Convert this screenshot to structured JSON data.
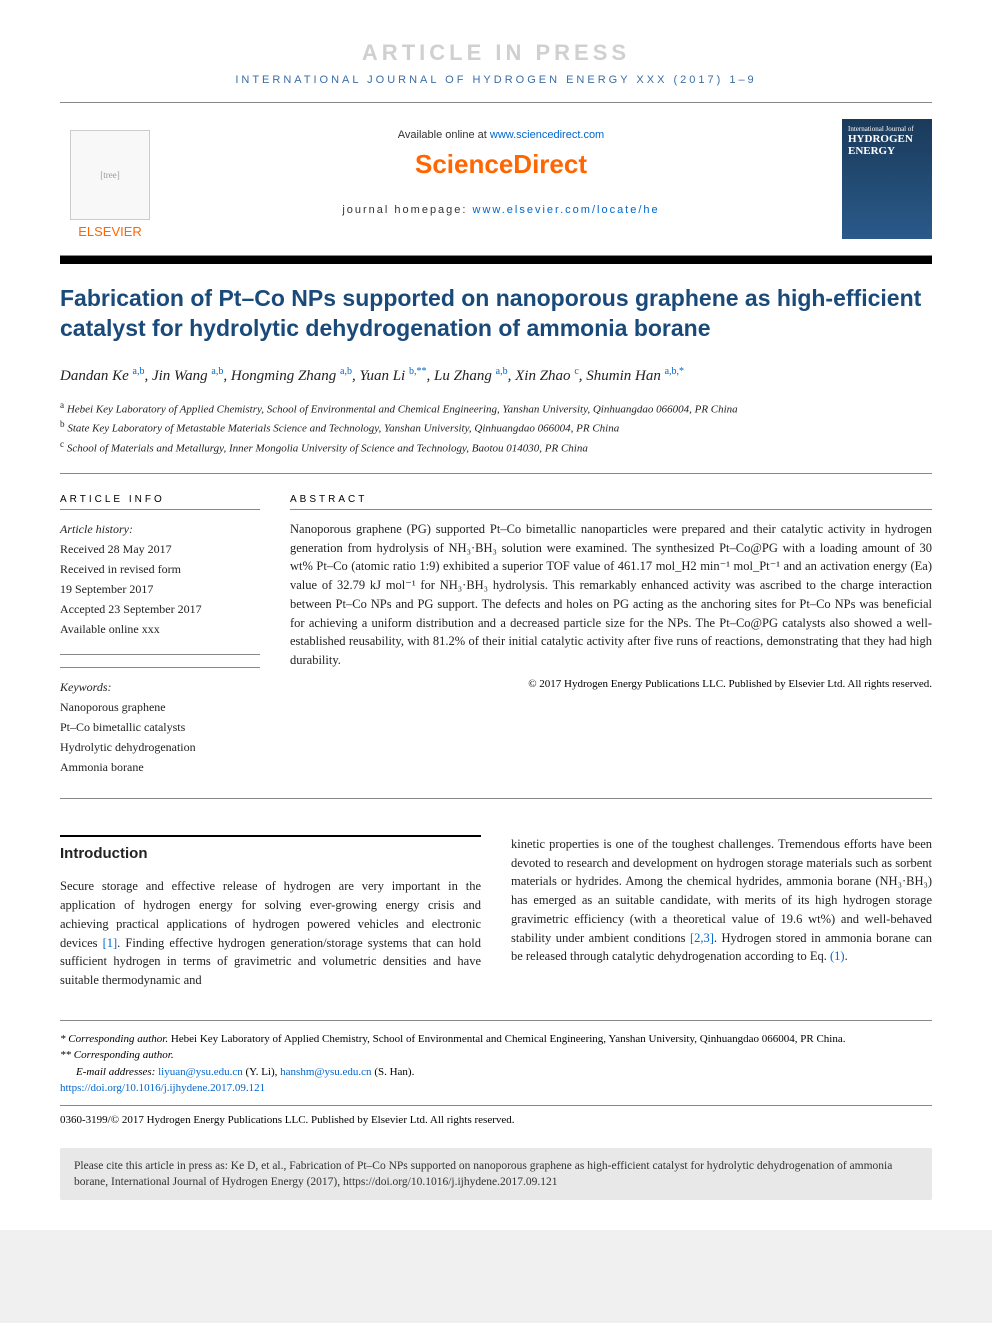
{
  "banner": "ARTICLE IN PRESS",
  "journal_ref": "INTERNATIONAL JOURNAL OF HYDROGEN ENERGY XXX (2017) 1–9",
  "available_text": "Available online at ",
  "available_link": "www.sciencedirect.com",
  "sciencedirect": "ScienceDirect",
  "homepage_text": "journal homepage: ",
  "homepage_link": "www.elsevier.com/locate/he",
  "publisher": "ELSEVIER",
  "cover_label": "HYDROGEN ENERGY",
  "cover_top": "International Journal of",
  "title": "Fabrication of Pt–Co NPs supported on nanoporous graphene as high-efficient catalyst for hydrolytic dehydrogenation of ammonia borane",
  "authors_html": "Dandan Ke <sup>a,b</sup>, Jin Wang <sup>a,b</sup>, Hongming Zhang <sup>a,b</sup>, Yuan Li <sup>b,**</sup>, Lu Zhang <sup>a,b</sup>, Xin Zhao <sup>c</sup>, Shumin Han <sup>a,b,*</sup>",
  "affiliations": [
    "<sup>a</sup> Hebei Key Laboratory of Applied Chemistry, School of Environmental and Chemical Engineering, Yanshan University, Qinhuangdao 066004, PR China",
    "<sup>b</sup> State Key Laboratory of Metastable Materials Science and Technology, Yanshan University, Qinhuangdao 066004, PR China",
    "<sup>c</sup> School of Materials and Metallurgy, Inner Mongolia University of Science and Technology, Baotou 014030, PR China"
  ],
  "info_heading": "ARTICLE INFO",
  "history_label": "Article history:",
  "history": [
    "Received 28 May 2017",
    "Received in revised form",
    "19 September 2017",
    "Accepted 23 September 2017",
    "Available online xxx"
  ],
  "keywords_label": "Keywords:",
  "keywords": [
    "Nanoporous graphene",
    "Pt–Co bimetallic catalysts",
    "Hydrolytic dehydrogenation",
    "Ammonia borane"
  ],
  "abstract_heading": "ABSTRACT",
  "abstract": "Nanoporous graphene (PG) supported Pt–Co bimetallic nanoparticles were prepared and their catalytic activity in hydrogen generation from hydrolysis of NH₃·BH₃ solution were examined. The synthesized Pt–Co@PG with a loading amount of 30 wt% Pt–Co (atomic ratio 1:9) exhibited a superior TOF value of 461.17 mol_H2 min⁻¹ mol_Pt⁻¹ and an activation energy (Ea) value of 32.79 kJ mol⁻¹ for NH₃·BH₃ hydrolysis. This remarkably enhanced activity was ascribed to the charge interaction between Pt–Co NPs and PG support. The defects and holes on PG acting as the anchoring sites for Pt–Co NPs was beneficial for achieving a uniform distribution and a decreased particle size for the NPs. The Pt–Co@PG catalysts also showed a well-established reusability, with 81.2% of their initial catalytic activity after five runs of reactions, demonstrating that they had high durability.",
  "abstract_copyright": "© 2017 Hydrogen Energy Publications LLC. Published by Elsevier Ltd. All rights reserved.",
  "intro_heading": "Introduction",
  "intro_col1": "Secure storage and effective release of hydrogen are very important in the application of hydrogen energy for solving ever-growing energy crisis and achieving practical applications of hydrogen powered vehicles and electronic devices [1]. Finding effective hydrogen generation/storage systems that can hold sufficient hydrogen in terms of gravimetric and volumetric densities and have suitable thermodynamic and",
  "intro_col2": "kinetic properties is one of the toughest challenges. Tremendous efforts have been devoted to research and development on hydrogen storage materials such as sorbent materials or hydrides. Among the chemical hydrides, ammonia borane (NH₃·BH₃) has emerged as an suitable candidate, with merits of its high hydrogen storage gravimetric efficiency (with a theoretical value of 19.6 wt%) and well-behaved stability under ambient conditions [2,3]. Hydrogen stored in ammonia borane can be released through catalytic dehydrogenation according to Eq. (1).",
  "corr1_label": "* Corresponding author.",
  "corr1_text": " Hebei Key Laboratory of Applied Chemistry, School of Environmental and Chemical Engineering, Yanshan University, Qinhuangdao 066004, PR China.",
  "corr2_label": "** Corresponding author.",
  "email_label": "E-mail addresses: ",
  "email1": "liyuan@ysu.edu.cn",
  "email1_name": " (Y. Li), ",
  "email2": "hanshm@ysu.edu.cn",
  "email2_name": " (S. Han).",
  "doi": "https://doi.org/10.1016/j.ijhydene.2017.09.121",
  "footer_copyright": "0360-3199/© 2017 Hydrogen Energy Publications LLC. Published by Elsevier Ltd. All rights reserved.",
  "cite_text": "Please cite this article in press as: Ke D, et al., Fabrication of Pt–Co NPs supported on nanoporous graphene as high-efficient catalyst for hydrolytic dehydrogenation of ammonia borane, International Journal of Hydrogen Energy (2017), https://doi.org/10.1016/j.ijhydene.2017.09.121"
}
